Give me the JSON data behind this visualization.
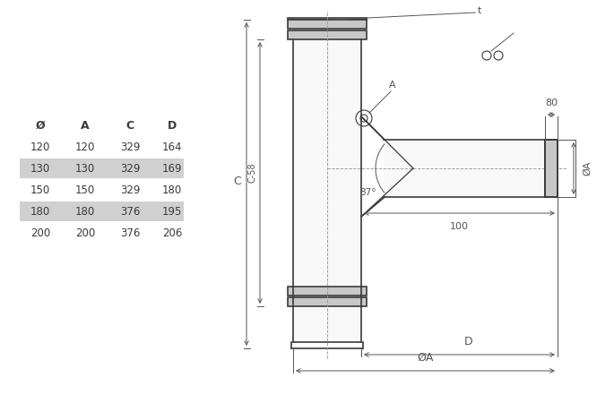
{
  "bg_color": "#ffffff",
  "line_color": "#3a3a3a",
  "dim_color": "#555555",
  "table_headers": [
    "Ø",
    "A",
    "C",
    "D"
  ],
  "table_rows": [
    [
      120,
      120,
      329,
      164
    ],
    [
      130,
      130,
      329,
      169
    ],
    [
      150,
      150,
      329,
      180
    ],
    [
      180,
      180,
      376,
      195
    ],
    [
      200,
      200,
      376,
      206
    ]
  ],
  "highlighted_rows": [
    1,
    3
  ],
  "highlight_color": "#d0d0d0",
  "drawing_notes": {
    "t_label": "t",
    "A_label": "A",
    "C_label": "C",
    "C58_label": "C-58",
    "phiA_label": "ØA",
    "D_label": "D",
    "angle_label": "87°",
    "dim_80": "80",
    "dim_100": "100"
  }
}
